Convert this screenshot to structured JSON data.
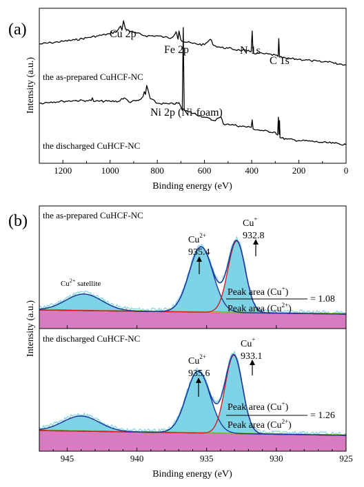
{
  "chart_data": [
    {
      "panel_label": "(a)",
      "type": "line",
      "xlabel": "Binding energy (eV)",
      "ylabel": "Intensity (a.u.)",
      "xlim": [
        1300,
        0
      ],
      "x_ticks": [
        1200,
        1000,
        800,
        600,
        400,
        200,
        0
      ],
      "series": [
        {
          "name": "the as-prepared CuHCF-NC",
          "points": [
            [
              1300,
              64
            ],
            [
              1250,
              62
            ],
            [
              1200,
              60
            ],
            [
              1150,
              58
            ],
            [
              1100,
              55
            ],
            [
              1050,
              52
            ],
            [
              1000,
              49
            ],
            [
              970,
              45
            ],
            [
              955,
              38
            ],
            [
              950,
              44
            ],
            [
              943,
              30
            ],
            [
              935,
              42
            ],
            [
              900,
              47
            ],
            [
              850,
              52
            ],
            [
              800,
              52
            ],
            [
              770,
              54
            ],
            [
              740,
              55
            ],
            [
              720,
              46
            ],
            [
              712,
              57
            ],
            [
              708,
              45
            ],
            [
              700,
              58
            ],
            [
              690,
              60
            ],
            [
              650,
              63
            ],
            [
              600,
              65
            ],
            [
              575,
              57
            ],
            [
              560,
              66
            ],
            [
              530,
              69
            ],
            [
              500,
              70
            ],
            [
              450,
              73
            ],
            [
              420,
              74
            ],
            [
              402,
              75
            ],
            [
              398,
              45
            ],
            [
              394,
              77
            ],
            [
              350,
              78
            ],
            [
              300,
              80
            ],
            [
              288,
              82
            ],
            [
              285,
              56
            ],
            [
              282,
              83
            ],
            [
              250,
              85
            ],
            [
              200,
              86
            ],
            [
              150,
              88
            ],
            [
              100,
              90
            ],
            [
              70,
              89
            ],
            [
              50,
              92
            ],
            [
              20,
              93
            ],
            [
              0,
              94
            ]
          ]
        },
        {
          "name": "the discharged CuHCF-NC",
          "points": [
            [
              1300,
              150
            ],
            [
              1250,
              148
            ],
            [
              1200,
              147
            ],
            [
              1150,
              146
            ],
            [
              1100,
              146
            ],
            [
              1080,
              146
            ],
            [
              1075,
              142
            ],
            [
              1070,
              147
            ],
            [
              1000,
              147
            ],
            [
              960,
              147
            ],
            [
              950,
              143
            ],
            [
              935,
              143
            ],
            [
              920,
              148
            ],
            [
              880,
              146
            ],
            [
              870,
              144
            ],
            [
              860,
              140
            ],
            [
              855,
              133
            ],
            [
              850,
              137
            ],
            [
              845,
              124
            ],
            [
              838,
              132
            ],
            [
              830,
              143
            ],
            [
              800,
              150
            ],
            [
              750,
              151
            ],
            [
              712,
              150
            ],
            [
              708,
              149
            ],
            [
              700,
              155
            ],
            [
              694,
              160
            ],
            [
              690,
              40
            ],
            [
              686,
              160
            ],
            [
              670,
              162
            ],
            [
              600,
              170
            ],
            [
              560,
              175
            ],
            [
              530,
              170
            ],
            [
              520,
              180
            ],
            [
              500,
              180
            ],
            [
              450,
              183
            ],
            [
              402,
              185
            ],
            [
              398,
              174
            ],
            [
              394,
              187
            ],
            [
              350,
              190
            ],
            [
              300,
              192
            ],
            [
              290,
              196
            ],
            [
              287,
              170
            ],
            [
              284,
              195
            ],
            [
              282,
              175
            ],
            [
              280,
              200
            ],
            [
              250,
              202
            ],
            [
              200,
              204
            ],
            [
              150,
              205
            ],
            [
              100,
              207
            ],
            [
              50,
              208
            ],
            [
              0,
              210
            ]
          ]
        }
      ],
      "annotations": {
        "cu2p": "Cu 2p",
        "fe2p": "Fe 2p",
        "n1s": "N 1s",
        "c1s": "C 1s",
        "ni2p": "Ni 2p (Ni-foam)"
      }
    },
    {
      "panel_label": "(b)",
      "type": "line",
      "xlabel": "Binding energy (eV)",
      "ylabel": "Intensity (a.u.)",
      "xlim": [
        947,
        925
      ],
      "x_ticks": [
        945,
        940,
        935,
        930,
        925
      ],
      "subplots": [
        {
          "title": "the as-prepared CuHCF-NC",
          "peaks": [
            {
              "label": "Cu",
              "sup": "2+",
              "value": "935.4",
              "center": 935.4
            },
            {
              "label": "Cu",
              "sup": "+",
              "value": "932.8",
              "center": 932.8
            },
            {
              "label": "Cu",
              "sup": "2+",
              "suffix": " satellite",
              "center": 944
            }
          ],
          "ratio": {
            "numerator": "Peak area (Cu",
            "numerator_sup": "+",
            "denominator": "Peak area (Cu",
            "denominator_sup": "2+",
            "close": ")",
            "result": "= 1.08"
          }
        },
        {
          "title": "the discharged CuHCF-NC",
          "peaks": [
            {
              "label": "Cu",
              "sup": "2+",
              "value": "935.6",
              "center": 935.6
            },
            {
              "label": "Cu",
              "sup": "+",
              "value": "933.1",
              "center": 933.1
            }
          ],
          "ratio": {
            "numerator": "Peak area (Cu",
            "numerator_sup": "+",
            "denominator": "Peak area (Cu",
            "denominator_sup": "2+",
            "close": ")",
            "result": "= 1.26"
          }
        }
      ],
      "colors": {
        "fill_peaks": "#7fd3e6",
        "baseline_fill": "#d77cc0",
        "envelope": "#1a3a9e",
        "cu1_peak": "#d42020",
        "baseline": "#d42020",
        "fit_background": "#7ac94f"
      }
    }
  ]
}
